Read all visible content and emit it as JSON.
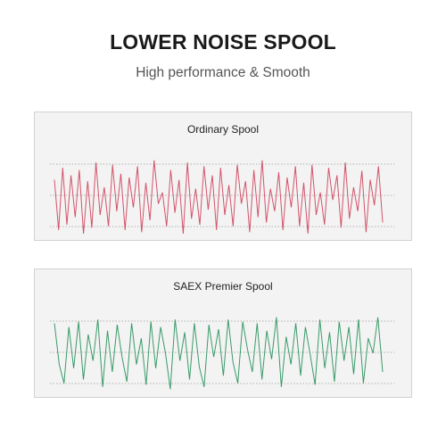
{
  "headline": "LOWER NOISE SPOOL",
  "subheadline": "High performance & Smooth",
  "panels": [
    {
      "title": "Ordinary Spool",
      "color": "#d2536a",
      "wave_levels": [
        0.72,
        0.05,
        0.88,
        0.12,
        0.78,
        0.22,
        0.85,
        0.0,
        0.7,
        0.08,
        0.95,
        0.25,
        0.62,
        0.1,
        0.92,
        0.3,
        0.8,
        0.05,
        0.75,
        0.35,
        0.9,
        0.02,
        0.68,
        0.18,
        0.98,
        0.4,
        0.55,
        0.1,
        0.85,
        0.28,
        0.72,
        0.0,
        0.95,
        0.2,
        0.6,
        0.12,
        0.9,
        0.32,
        0.78,
        0.05,
        0.88,
        0.25,
        0.65,
        0.1,
        0.92,
        0.4,
        0.7,
        0.02,
        0.85,
        0.22,
        0.98,
        0.15,
        0.6,
        0.3,
        0.82,
        0.05,
        0.75,
        0.35,
        0.9,
        0.1,
        0.68,
        0.0,
        0.92,
        0.25,
        0.55,
        0.12,
        0.88,
        0.45,
        0.78,
        0.08,
        0.95,
        0.2,
        0.62,
        0.3,
        0.84,
        0.02,
        0.72,
        0.38,
        0.9,
        0.15
      ]
    },
    {
      "title": "SAEX Premier Spool",
      "color": "#3a9a6a",
      "wave_levels": [
        0.9,
        0.35,
        0.1,
        0.85,
        0.3,
        0.92,
        0.15,
        0.75,
        0.4,
        0.95,
        0.05,
        0.8,
        0.25,
        0.88,
        0.45,
        0.12,
        0.9,
        0.35,
        0.7,
        0.08,
        0.92,
        0.3,
        0.85,
        0.5,
        0.02,
        0.95,
        0.4,
        0.78,
        0.15,
        0.9,
        0.32,
        0.05,
        0.88,
        0.45,
        0.82,
        0.2,
        0.95,
        0.38,
        0.1,
        0.92,
        0.55,
        0.25,
        0.9,
        0.15,
        0.8,
        0.42,
        0.98,
        0.05,
        0.72,
        0.35,
        0.9,
        0.2,
        0.85,
        0.48,
        0.08,
        0.95,
        0.3,
        0.78,
        0.12,
        0.92,
        0.4,
        0.85,
        0.22,
        0.95,
        0.1,
        0.7,
        0.5,
        0.98,
        0.25
      ]
    }
  ]
}
